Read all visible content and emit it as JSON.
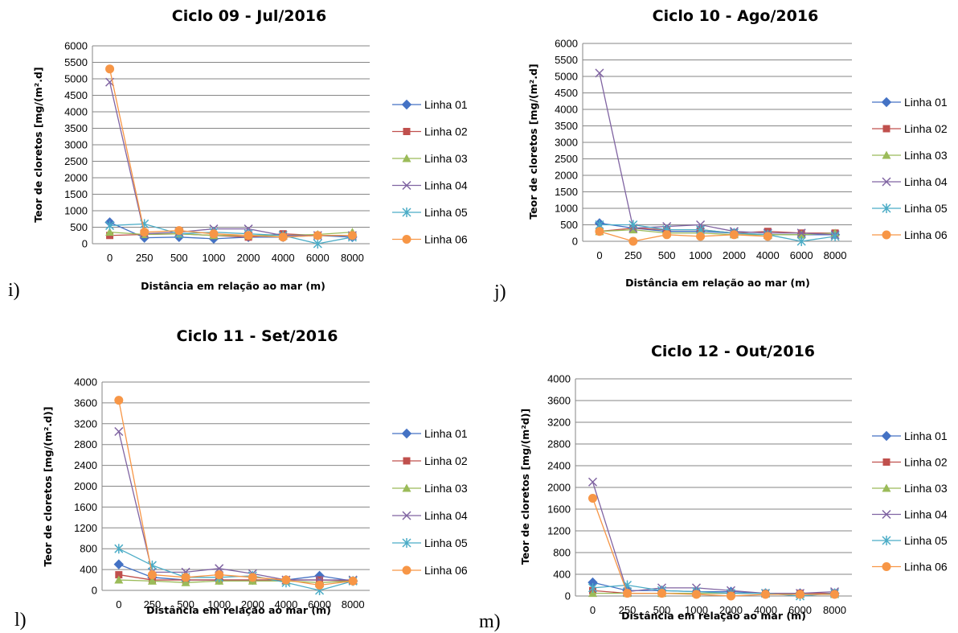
{
  "series_colors": [
    "#4472C4",
    "#C0504D",
    "#9BBB59",
    "#8064A2",
    "#4BACC6",
    "#F79646"
  ],
  "series_markers": [
    "diamond",
    "square",
    "triangle",
    "x",
    "star",
    "circle"
  ],
  "chart_data": [
    {
      "type": "line",
      "panel_label": "i)",
      "title": "Ciclo 09 - Jul/2016",
      "xlabel": "Distância em relação ao mar (m)",
      "ylabel": "Teor de cloretos [mg/(m².d]",
      "categories": [
        "0",
        "250",
        "500",
        "1000",
        "2000",
        "4000",
        "6000",
        "8000"
      ],
      "ylim": [
        0,
        6000
      ],
      "yticks": [
        0,
        500,
        1000,
        1500,
        2000,
        2500,
        3000,
        3500,
        4000,
        4500,
        5000,
        5500,
        6000
      ],
      "grid": "horizontal",
      "legend": "right",
      "series": [
        {
          "name": "Linha 01",
          "values": [
            650,
            180,
            200,
            150,
            200,
            200,
            250,
            200
          ]
        },
        {
          "name": "Linha 02",
          "values": [
            250,
            280,
            300,
            250,
            200,
            300,
            250,
            250
          ]
        },
        {
          "name": "Linha 03",
          "values": [
            350,
            280,
            300,
            250,
            250,
            250,
            280,
            350
          ]
        },
        {
          "name": "Linha 04",
          "values": [
            4900,
            300,
            350,
            450,
            450,
            250,
            250,
            250
          ]
        },
        {
          "name": "Linha 05",
          "values": [
            550,
            600,
            300,
            350,
            300,
            250,
            0,
            200
          ]
        },
        {
          "name": "Linha 06",
          "values": [
            5300,
            350,
            400,
            300,
            250,
            200,
            250,
            250
          ]
        }
      ]
    },
    {
      "type": "line",
      "panel_label": "j)",
      "title": "Ciclo 10 - Ago/2016",
      "xlabel": "Distância em relação ao mar (m)",
      "ylabel": "Teor de cloretos [mg/(m².d]",
      "categories": [
        "0",
        "250",
        "500",
        "1000",
        "2000",
        "4000",
        "6000",
        "8000"
      ],
      "ylim": [
        0,
        6000
      ],
      "yticks": [
        0,
        500,
        1000,
        1500,
        2000,
        2500,
        3000,
        3500,
        4000,
        4500,
        5000,
        5500,
        6000
      ],
      "grid": "horizontal",
      "legend": "right",
      "series": [
        {
          "name": "Linha 01",
          "values": [
            550,
            400,
            300,
            300,
            250,
            200,
            200,
            200
          ]
        },
        {
          "name": "Linha 02",
          "values": [
            300,
            400,
            350,
            350,
            250,
            300,
            250,
            250
          ]
        },
        {
          "name": "Linha 03",
          "values": [
            300,
            350,
            250,
            250,
            200,
            200,
            200,
            250
          ]
        },
        {
          "name": "Linha 04",
          "values": [
            5100,
            400,
            450,
            500,
            300,
            250,
            250,
            200
          ]
        },
        {
          "name": "Linha 05",
          "values": [
            500,
            500,
            350,
            350,
            250,
            200,
            0,
            150
          ]
        },
        {
          "name": "Linha 06",
          "values": [
            300,
            0,
            200,
            150,
            200,
            150,
            null,
            null
          ]
        }
      ]
    },
    {
      "type": "line",
      "panel_label": "l)",
      "title": "Ciclo 11 - Set/2016",
      "xlabel": "Distância em relação ao mar (m)",
      "ylabel": "Teor de cloretos [mg/(m².d)]",
      "categories": [
        "0",
        "250",
        "500",
        "1000",
        "2000",
        "4000",
        "6000",
        "8000"
      ],
      "ylim": [
        0,
        4000
      ],
      "yticks": [
        0,
        400,
        800,
        1200,
        1600,
        2000,
        2400,
        2800,
        3200,
        3600,
        4000
      ],
      "grid": "horizontal",
      "legend": "right",
      "series": [
        {
          "name": "Linha 01",
          "values": [
            500,
            250,
            200,
            200,
            200,
            200,
            280,
            180
          ]
        },
        {
          "name": "Linha 02",
          "values": [
            300,
            200,
            200,
            200,
            200,
            200,
            200,
            180
          ]
        },
        {
          "name": "Linha 03",
          "values": [
            200,
            180,
            150,
            180,
            180,
            180,
            150,
            180
          ]
        },
        {
          "name": "Linha 04",
          "values": [
            3050,
            350,
            350,
            420,
            320,
            200,
            200,
            200
          ]
        },
        {
          "name": "Linha 05",
          "values": [
            800,
            480,
            250,
            250,
            280,
            150,
            0,
            180
          ]
        },
        {
          "name": "Linha 06",
          "values": [
            3650,
            300,
            250,
            300,
            250,
            200,
            100,
            180
          ]
        }
      ]
    },
    {
      "type": "line",
      "panel_label": "m)",
      "title": "Ciclo 12 - Out/2016",
      "xlabel": "Distância  em relação ao mar (m)",
      "ylabel": "Teor de cloretos  [mg/(m²d)]",
      "categories": [
        "0",
        "250",
        "500",
        "1000",
        "2000",
        "4000",
        "6000",
        "8000"
      ],
      "ylim": [
        0,
        4000
      ],
      "yticks": [
        0,
        400,
        800,
        1200,
        1600,
        2000,
        2400,
        2800,
        3200,
        3600,
        4000
      ],
      "grid": "horizontal",
      "legend": "right",
      "series": [
        {
          "name": "Linha 01",
          "values": [
            250,
            100,
            100,
            80,
            80,
            50,
            50,
            50
          ]
        },
        {
          "name": "Linha 02",
          "values": [
            100,
            50,
            50,
            50,
            50,
            50,
            50,
            50
          ]
        },
        {
          "name": "Linha 03",
          "values": [
            50,
            50,
            50,
            50,
            50,
            50,
            30,
            30
          ]
        },
        {
          "name": "Linha 04",
          "values": [
            2100,
            80,
            150,
            150,
            100,
            50,
            50,
            80
          ]
        },
        {
          "name": "Linha 05",
          "values": [
            150,
            200,
            100,
            80,
            50,
            50,
            0,
            50
          ]
        },
        {
          "name": "Linha 06",
          "values": [
            1800,
            50,
            50,
            30,
            0,
            30,
            30,
            30
          ]
        }
      ]
    }
  ]
}
